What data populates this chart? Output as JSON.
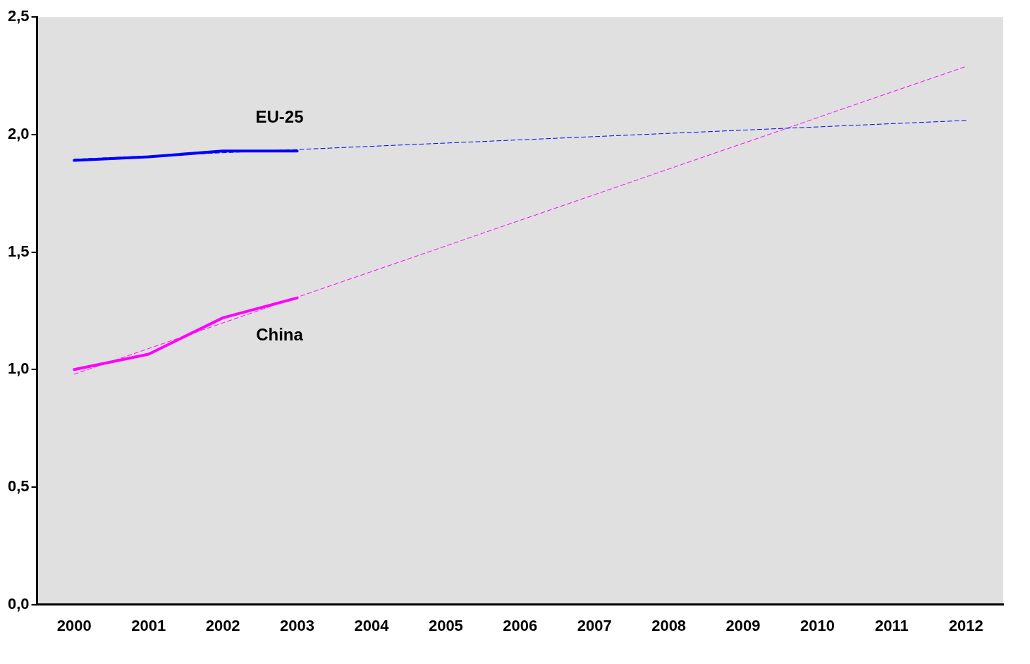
{
  "chart_data": {
    "type": "line",
    "categories": [
      "2000",
      "2001",
      "2002",
      "2003",
      "2004",
      "2005",
      "2006",
      "2007",
      "2008",
      "2009",
      "2010",
      "2011",
      "2012"
    ],
    "series": [
      {
        "name": "EU-25",
        "color": "#0000ff",
        "values": [
          1.89,
          1.905,
          1.93,
          1.93,
          null,
          null,
          null,
          null,
          null,
          null,
          null,
          null,
          null
        ],
        "line_style": "solid"
      },
      {
        "name": "China",
        "color": "#ff00ff",
        "values": [
          1.0,
          1.065,
          1.22,
          1.305,
          null,
          null,
          null,
          null,
          null,
          null,
          null,
          null,
          null
        ],
        "line_style": "solid"
      },
      {
        "type": "line",
        "color": "#0000ff",
        "values": [
          1.895,
          null,
          null,
          null,
          null,
          null,
          null,
          null,
          null,
          null,
          null,
          null,
          2.06
        ],
        "line_style": "dashed"
      },
      {
        "type": "line",
        "color": "#ff00ff",
        "values": [
          0.98,
          null,
          null,
          null,
          null,
          null,
          null,
          null,
          null,
          null,
          null,
          null,
          2.29
        ],
        "line_style": "dashed"
      }
    ],
    "ylim": [
      0,
      2.5
    ],
    "yticks": [
      {
        "value": 0,
        "label": "0,0"
      },
      {
        "value": 0.5,
        "label": "0,5"
      },
      {
        "value": 1,
        "label": "1,0"
      },
      {
        "value": 1.5,
        "label": "1,5"
      },
      {
        "value": 2,
        "label": "2,0"
      },
      {
        "value": 2.5,
        "label": "2,5"
      }
    ],
    "grid": false,
    "legend": false,
    "marker": "none"
  }
}
